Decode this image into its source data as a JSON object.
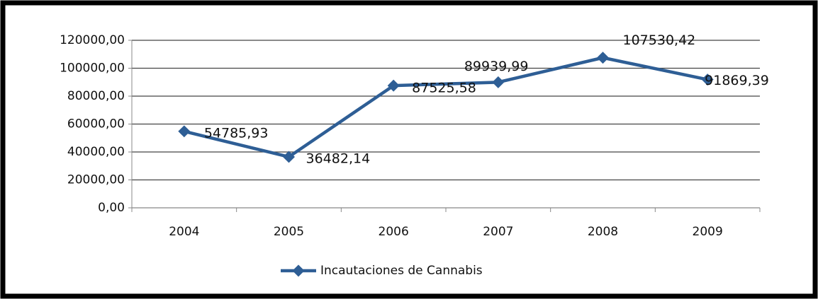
{
  "chart_data": {
    "type": "line",
    "categories": [
      "2004",
      "2005",
      "2006",
      "2007",
      "2008",
      "2009"
    ],
    "series": [
      {
        "name": "Incautaciones de Cannabis",
        "color": "#2e5e95",
        "values": [
          54785.93,
          36482.14,
          87525.58,
          89939.99,
          107530.42,
          91869.39
        ],
        "value_labels": [
          "54785,93",
          "36482,14",
          "87525,58",
          "89939,99",
          "107530,42",
          "91869,39"
        ]
      }
    ],
    "ylim": [
      0,
      120000
    ],
    "yticks": [
      {
        "value": 0,
        "label": "0,00"
      },
      {
        "value": 20000,
        "label": "20000,00"
      },
      {
        "value": 40000,
        "label": "40000,00"
      },
      {
        "value": 60000,
        "label": "60000,00"
      },
      {
        "value": 80000,
        "label": "80000,00"
      },
      {
        "value": 100000,
        "label": "100000,00"
      },
      {
        "value": 120000,
        "label": "120000,00"
      }
    ],
    "grid": true,
    "legend": "bottom"
  }
}
